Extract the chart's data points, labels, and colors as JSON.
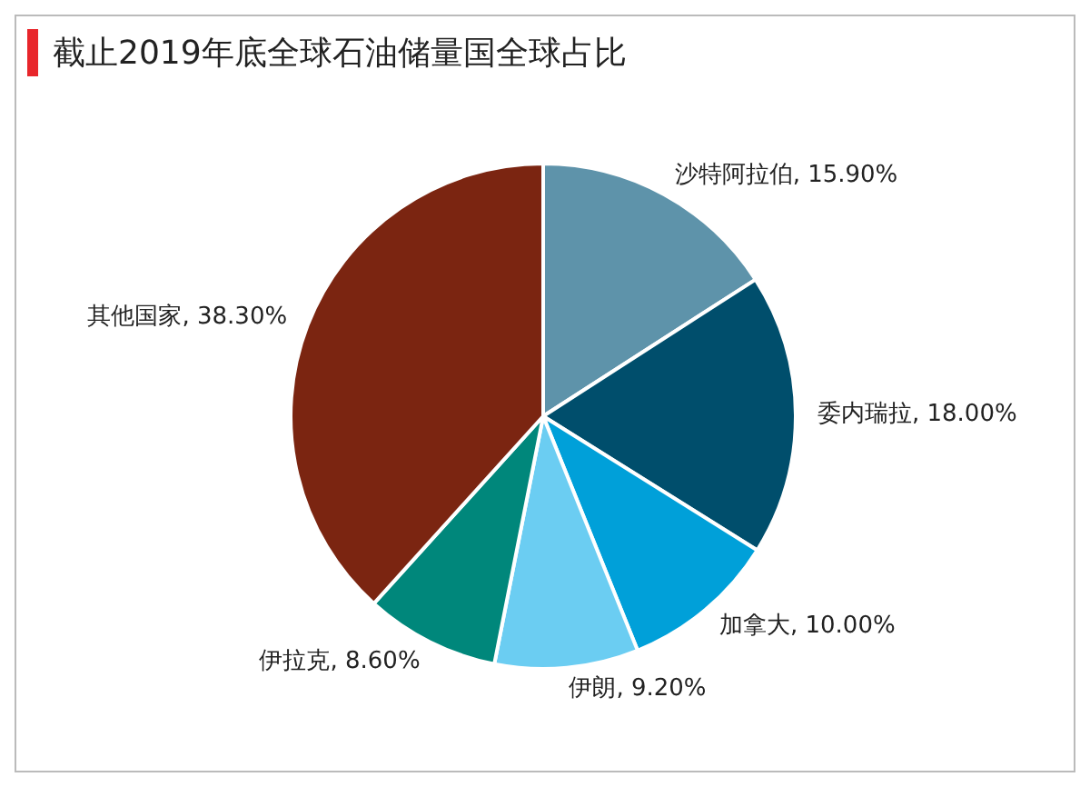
{
  "chart_data": {
    "type": "pie",
    "title": "截止2019年底全球石油储量国全球占比",
    "categories": [
      "沙特阿拉伯",
      "委内瑞拉",
      "加拿大",
      "伊朗",
      "伊拉克",
      "其他国家"
    ],
    "values": [
      15.9,
      18.0,
      10.0,
      9.2,
      8.6,
      38.3
    ],
    "value_labels": [
      "15.90%",
      "18.00%",
      "10.00%",
      "9.20%",
      "8.60%",
      "38.30%"
    ],
    "colors": [
      "#5e93aa",
      "#004e6c",
      "#00a0d9",
      "#6bcdf2",
      "#00877b",
      "#7b2511"
    ]
  }
}
